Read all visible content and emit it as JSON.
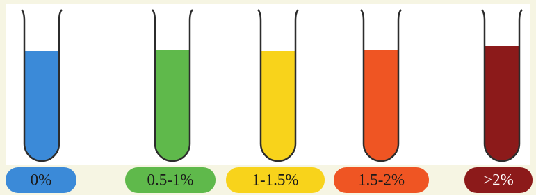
{
  "tubes": [
    {
      "label": "0%",
      "color": "#3b8ad8",
      "text_color": "#1a1a1a"
    },
    {
      "label": "0.5-1%",
      "color": "#5fb94b",
      "text_color": "#1a1a1a"
    },
    {
      "label": "1-1.5%",
      "color": "#f8d31b",
      "text_color": "#1a1a1a"
    },
    {
      "label": "1.5-2%",
      "color": "#ef5523",
      "text_color": "#1a1a1a"
    },
    {
      "label": ">2%",
      "color": "#8c1a1a",
      "text_color": "#ffffff"
    }
  ]
}
